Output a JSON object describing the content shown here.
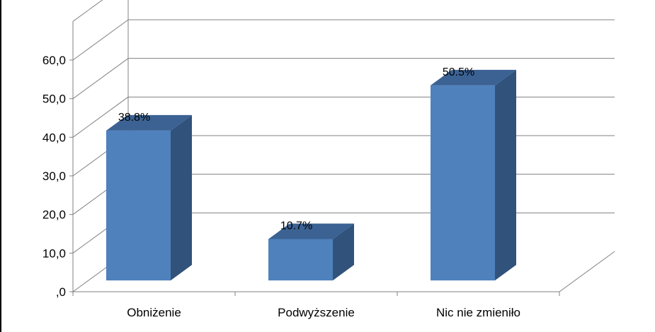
{
  "chart_data": {
    "type": "bar",
    "categories": [
      "Obniżenie",
      "Podwyższenie",
      "Nic nie zmieniło"
    ],
    "values": [
      38.8,
      10.7,
      50.5
    ],
    "data_labels": [
      "38.8%",
      "10.7%",
      "50.5%"
    ],
    "y_tick_labels": [
      ",0",
      "10,0",
      "20,0",
      "30,0",
      "40,0",
      "50,0",
      "60,0"
    ],
    "ylim": [
      0,
      60
    ],
    "grid": true,
    "three_d": true,
    "legend": "none",
    "colors": {
      "bar_front": "#4f81bd",
      "bar_side": "#31527b",
      "bar_top": "#3b6293",
      "grid": "#808080",
      "text": "#000000"
    }
  }
}
